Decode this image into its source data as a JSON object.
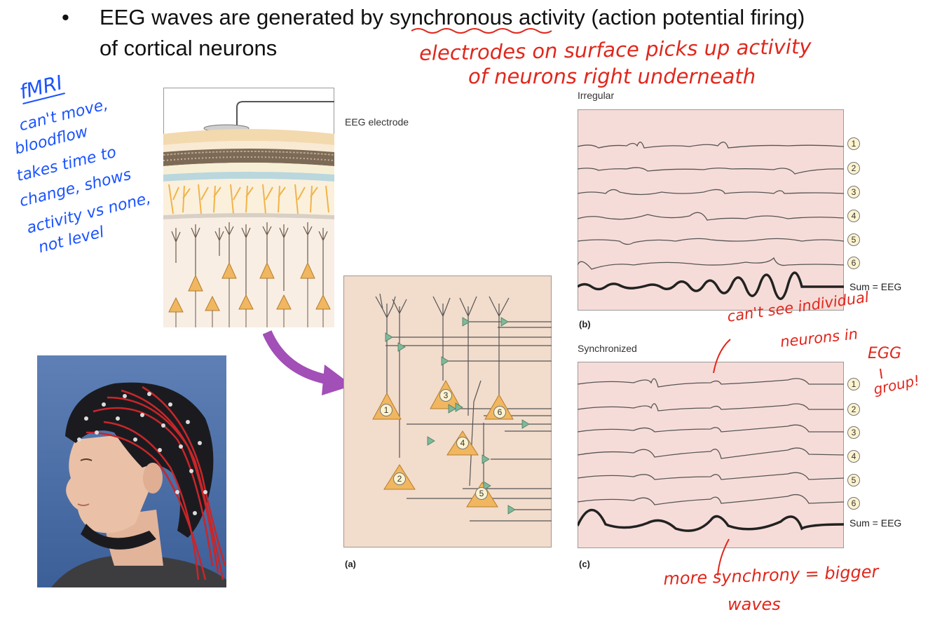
{
  "bullet": {
    "symbol": "•",
    "line1_before": "EEG waves are generated by ",
    "line1_underlined": "synchronous",
    "line1_after": " activity (action potential firing)",
    "line2": "of cortical neurons"
  },
  "annotations_red": {
    "top_line1": "electrodes on surface picks up activity",
    "top_line2": "of neurons right underneath",
    "mid_line1": "can't see individual",
    "mid_line2": "neurons in",
    "mid_line3": "EGG",
    "mid_line4": "group!",
    "bottom_line1": "more synchrony = bigger",
    "bottom_line2": "waves"
  },
  "annotations_blue": {
    "title": "fMRI",
    "lines": [
      "can't move,",
      "bloodflow",
      "takes time to",
      "change, shows",
      "activity vs none,",
      "not level"
    ]
  },
  "figure": {
    "electrode_label": "EEG electrode",
    "irregular_title": "Irregular",
    "synchronized_title": "Synchronized",
    "panel_a": "(a)",
    "panel_b": "(b)",
    "panel_c": "(c)",
    "sum_label": "Sum = EEG",
    "trace_numbers": [
      "1",
      "2",
      "3",
      "4",
      "5",
      "6"
    ],
    "neuron_numbers": [
      "1",
      "2",
      "3",
      "4",
      "5",
      "6"
    ]
  },
  "colors": {
    "red_ink": "#e0271c",
    "blue_ink": "#1a53ff",
    "trace_panel_bg": "#f6dcd8",
    "neuron_panel_bg": "#f2dccc",
    "arrow_purple": "#a24fb7"
  }
}
